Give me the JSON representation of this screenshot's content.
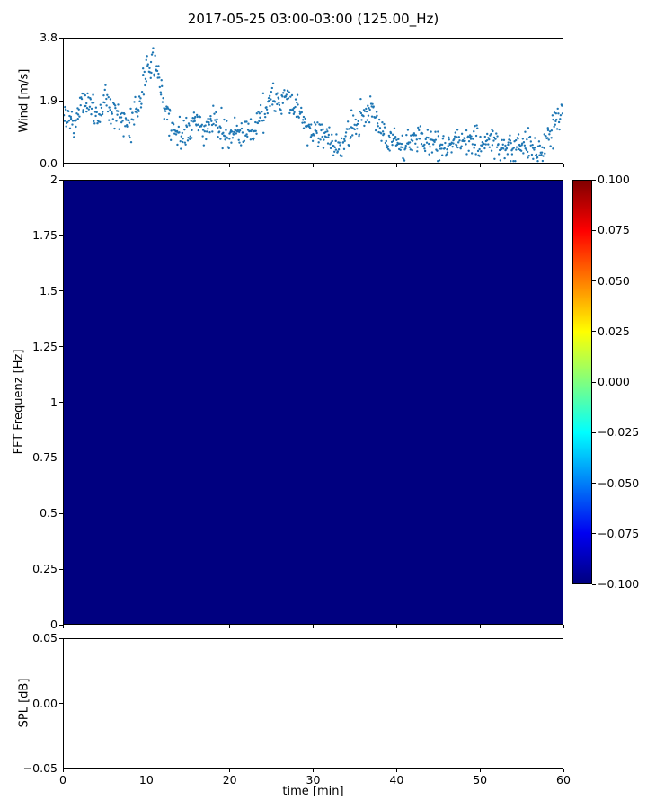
{
  "figure": {
    "title": "2017-05-25 03:00-03:00 (125.00_Hz)",
    "background": "#ffffff"
  },
  "chart_data": [
    {
      "id": "wind",
      "type": "scatter",
      "ylabel": "Wind [m/s]",
      "ylim": [
        0.0,
        3.8
      ],
      "yticks": [
        0.0,
        1.9,
        3.8
      ],
      "ytick_labels": [
        "0.0",
        "1.9",
        "3.8"
      ],
      "xlim": [
        0,
        60
      ],
      "marker_color": "#1f77b4",
      "x_minutes": [
        0,
        1,
        2,
        3,
        4,
        5,
        6,
        7,
        8,
        9,
        10,
        11,
        12,
        13,
        14,
        15,
        16,
        17,
        18,
        19,
        20,
        21,
        22,
        23,
        24,
        25,
        26,
        27,
        28,
        29,
        30,
        31,
        32,
        33,
        34,
        35,
        36,
        37,
        38,
        39,
        40,
        41,
        42,
        43,
        44,
        45,
        46,
        47,
        48,
        49,
        50,
        51,
        52,
        53,
        54,
        55,
        56,
        57,
        58,
        59,
        60
      ],
      "wind_mean": [
        1.4,
        1.2,
        1.8,
        1.8,
        1.5,
        1.9,
        1.6,
        1.3,
        1.2,
        1.7,
        2.9,
        3.2,
        1.8,
        1.0,
        0.8,
        0.8,
        1.4,
        0.9,
        1.4,
        0.9,
        0.8,
        1.0,
        0.8,
        1.1,
        1.7,
        1.9,
        1.8,
        2.0,
        1.7,
        1.2,
        1.0,
        0.9,
        0.7,
        0.4,
        0.7,
        1.1,
        1.3,
        1.7,
        1.0,
        0.7,
        0.6,
        0.5,
        0.6,
        0.8,
        0.7,
        0.6,
        0.5,
        0.6,
        0.7,
        0.7,
        0.7,
        0.8,
        0.6,
        0.5,
        0.4,
        0.5,
        0.5,
        0.4,
        0.6,
        1.1,
        1.6
      ],
      "scatter_spread": 0.35,
      "points_per_minute": 15,
      "observed_max": 3.78,
      "observed_min": 0.05
    },
    {
      "id": "spectrogram",
      "type": "heatmap",
      "ylabel": "FFT Frequenz [Hz]",
      "ylim": [
        0,
        2
      ],
      "yticks": [
        0,
        0.25,
        0.5,
        0.75,
        1,
        1.25,
        1.5,
        1.75,
        2
      ],
      "ytick_labels": [
        "0",
        "0.25",
        "0.5",
        "0.75",
        "1",
        "1.25",
        "1.5",
        "1.75",
        "2"
      ],
      "xlim": [
        0,
        60
      ],
      "uniform_value": -0.1,
      "fill_color": "#000080",
      "colormap": "jet",
      "clim": [
        -0.1,
        0.1
      ]
    },
    {
      "id": "spl",
      "type": "scatter",
      "ylabel": "SPL [dB]",
      "ylim": [
        -0.05,
        0.05
      ],
      "yticks": [
        -0.05,
        0.0,
        0.05
      ],
      "ytick_labels": [
        "−0.05",
        "0.00",
        "0.05"
      ],
      "xlim": [
        0,
        60
      ],
      "xlabel": "time [min]",
      "xticks": [
        0,
        10,
        20,
        30,
        40,
        50,
        60
      ],
      "xtick_labels": [
        "0",
        "10",
        "20",
        "30",
        "40",
        "50",
        "60"
      ],
      "points": []
    }
  ],
  "colorbar": {
    "colormap": "jet",
    "clim": [
      -0.1,
      0.1
    ],
    "ticks": [
      0.1,
      0.075,
      0.05,
      0.025,
      0.0,
      -0.025,
      -0.05,
      -0.075,
      -0.1
    ],
    "tick_labels": [
      "0.100",
      "0.075",
      "0.050",
      "0.025",
      "0.000",
      "−0.025",
      "−0.050",
      "−0.075",
      "−0.100"
    ],
    "gradient_stops": [
      [
        "0%",
        "#000080"
      ],
      [
        "12.5%",
        "#0000f1"
      ],
      [
        "37.5%",
        "#00ffff"
      ],
      [
        "62.5%",
        "#ffff00"
      ],
      [
        "87.5%",
        "#ff0000"
      ],
      [
        "100%",
        "#800000"
      ]
    ]
  }
}
